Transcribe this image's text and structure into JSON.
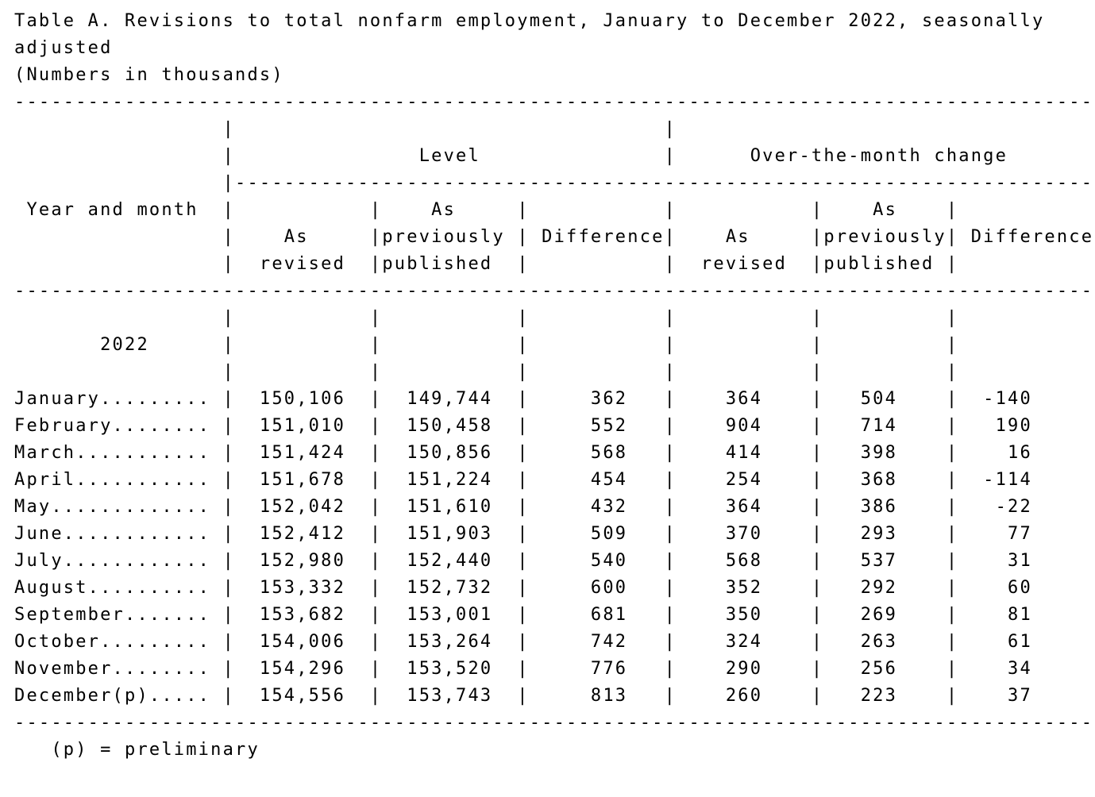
{
  "colors": {
    "background": "#ffffff",
    "text": "#000000"
  },
  "document": {
    "title": "Table A. Revisions to total nonfarm employment, January to December 2022, seasonally adjusted",
    "subtitle": "(Numbers in thousands)",
    "footnote": "(p) = preliminary"
  },
  "table": {
    "row_header": "Year and month",
    "year_label": "2022",
    "group1_label": "Level",
    "group2_label": "Over-the-month change",
    "col_as": "As",
    "col_revised": "revised",
    "col_previously": "previously",
    "col_published": "published",
    "col_difference": "Difference",
    "rows": [
      {
        "month": "January",
        "level_revised": "150,106",
        "level_published": "149,744",
        "level_diff": "362",
        "otm_revised": "364",
        "otm_published": "504",
        "otm_diff": "-140"
      },
      {
        "month": "February",
        "level_revised": "151,010",
        "level_published": "150,458",
        "level_diff": "552",
        "otm_revised": "904",
        "otm_published": "714",
        "otm_diff": "190"
      },
      {
        "month": "March",
        "level_revised": "151,424",
        "level_published": "150,856",
        "level_diff": "568",
        "otm_revised": "414",
        "otm_published": "398",
        "otm_diff": "16"
      },
      {
        "month": "April",
        "level_revised": "151,678",
        "level_published": "151,224",
        "level_diff": "454",
        "otm_revised": "254",
        "otm_published": "368",
        "otm_diff": "-114"
      },
      {
        "month": "May",
        "level_revised": "152,042",
        "level_published": "151,610",
        "level_diff": "432",
        "otm_revised": "364",
        "otm_published": "386",
        "otm_diff": "-22"
      },
      {
        "month": "June",
        "level_revised": "152,412",
        "level_published": "151,903",
        "level_diff": "509",
        "otm_revised": "370",
        "otm_published": "293",
        "otm_diff": "77"
      },
      {
        "month": "July",
        "level_revised": "152,980",
        "level_published": "152,440",
        "level_diff": "540",
        "otm_revised": "568",
        "otm_published": "537",
        "otm_diff": "31"
      },
      {
        "month": "August",
        "level_revised": "153,332",
        "level_published": "152,732",
        "level_diff": "600",
        "otm_revised": "352",
        "otm_published": "292",
        "otm_diff": "60"
      },
      {
        "month": "September",
        "level_revised": "153,682",
        "level_published": "153,001",
        "level_diff": "681",
        "otm_revised": "350",
        "otm_published": "269",
        "otm_diff": "81"
      },
      {
        "month": "October",
        "level_revised": "154,006",
        "level_published": "153,264",
        "level_diff": "742",
        "otm_revised": "324",
        "otm_published": "263",
        "otm_diff": "61"
      },
      {
        "month": "November",
        "level_revised": "154,296",
        "level_published": "153,520",
        "level_diff": "776",
        "otm_revised": "290",
        "otm_published": "256",
        "otm_diff": "34"
      },
      {
        "month": "December(p)",
        "level_revised": "154,556",
        "level_published": "153,743",
        "level_diff": "813",
        "otm_revised": "260",
        "otm_published": "223",
        "otm_diff": "37"
      }
    ]
  }
}
